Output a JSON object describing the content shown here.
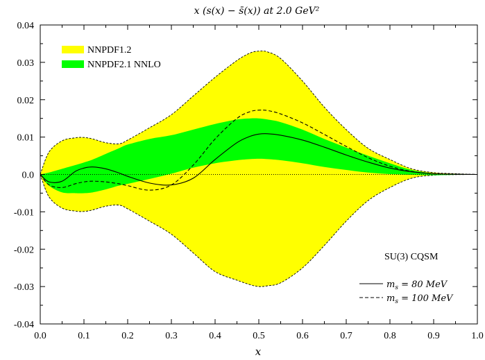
{
  "chart_data": {
    "type": "area",
    "title": "x (s(x) − s̄(x)) at 2.0 GeV²",
    "xlabel": "x",
    "ylabel": "",
    "xlim": [
      0.0,
      1.0
    ],
    "ylim": [
      -0.04,
      0.04
    ],
    "x_ticks": [
      "0.0",
      "0.1",
      "0.2",
      "0.3",
      "0.4",
      "0.5",
      "0.6",
      "0.7",
      "0.8",
      "0.9",
      "1.0"
    ],
    "y_ticks": [
      "0.04",
      "0.03",
      "0.02",
      "0.01",
      "0.0",
      "-0.01",
      "-0.02",
      "-0.03",
      "-0.04"
    ],
    "grid": false,
    "legend_position": "top-left",
    "annotation": "SU(3) CQSM",
    "x": [
      0.0,
      0.02,
      0.05,
      0.08,
      0.1,
      0.12,
      0.15,
      0.18,
      0.2,
      0.25,
      0.3,
      0.35,
      0.4,
      0.45,
      0.48,
      0.5,
      0.52,
      0.55,
      0.6,
      0.65,
      0.7,
      0.75,
      0.8,
      0.85,
      0.9,
      0.95,
      1.0
    ],
    "bands": [
      {
        "name": "NNPDF1.2",
        "color": "#ffff00",
        "upper": [
          0.0,
          0.006,
          0.009,
          0.0098,
          0.0099,
          0.0095,
          0.0085,
          0.0082,
          0.0092,
          0.0125,
          0.016,
          0.021,
          0.026,
          0.0305,
          0.0325,
          0.033,
          0.0328,
          0.031,
          0.025,
          0.018,
          0.012,
          0.007,
          0.004,
          0.0015,
          0.0005,
          0.0002,
          0.0
        ],
        "lower": [
          0.0,
          -0.006,
          -0.009,
          -0.0098,
          -0.0099,
          -0.0095,
          -0.0085,
          -0.0082,
          -0.0092,
          -0.0125,
          -0.016,
          -0.021,
          -0.026,
          -0.0283,
          -0.0295,
          -0.03,
          -0.0298,
          -0.029,
          -0.025,
          -0.019,
          -0.0125,
          -0.007,
          -0.0035,
          -0.001,
          -0.0002,
          -5e-05,
          0.0
        ]
      },
      {
        "name": "NNPDF2.1 NNLO",
        "color": "#00ff00",
        "upper": [
          0.0,
          0.0005,
          0.0015,
          0.0025,
          0.0032,
          0.004,
          0.0055,
          0.007,
          0.008,
          0.0095,
          0.0105,
          0.012,
          0.0135,
          0.0147,
          0.015,
          0.015,
          0.0147,
          0.014,
          0.012,
          0.0095,
          0.0072,
          0.005,
          0.003,
          0.0012,
          0.0003,
          0.0001,
          0.0
        ],
        "lower": [
          0.0,
          -0.003,
          -0.0048,
          -0.005,
          -0.005,
          -0.0048,
          -0.004,
          -0.003,
          -0.0025,
          -0.0012,
          0.0002,
          0.0018,
          0.003,
          0.0038,
          0.0041,
          0.0042,
          0.0041,
          0.0038,
          0.003,
          0.002,
          0.0012,
          0.0005,
          0.0001,
          -0.0001,
          -0.0002,
          -0.0001,
          0.0
        ]
      }
    ],
    "series": [
      {
        "name": "m_s = 80 MeV",
        "style": "solid",
        "y": [
          0.0,
          -0.002,
          -0.0018,
          0.0008,
          0.0017,
          0.002,
          0.0015,
          0.0004,
          -0.0005,
          -0.0023,
          -0.0028,
          -0.001,
          0.004,
          0.0085,
          0.0102,
          0.0108,
          0.0109,
          0.0105,
          0.0092,
          0.0073,
          0.0052,
          0.0033,
          0.0017,
          0.0007,
          0.0002,
          5e-05,
          0.0
        ]
      },
      {
        "name": "m_s = 100 MeV",
        "style": "dashed",
        "y": [
          0.0,
          -0.0028,
          -0.0035,
          -0.0025,
          -0.002,
          -0.0018,
          -0.002,
          -0.0025,
          -0.003,
          -0.0042,
          -0.0028,
          0.0025,
          0.0095,
          0.015,
          0.0168,
          0.0172,
          0.0171,
          0.0162,
          0.0138,
          0.0107,
          0.0075,
          0.0045,
          0.0022,
          0.0008,
          0.0002,
          5e-05,
          0.0
        ]
      }
    ],
    "zero_line": {
      "style": "dotted",
      "y": 0.0
    }
  }
}
